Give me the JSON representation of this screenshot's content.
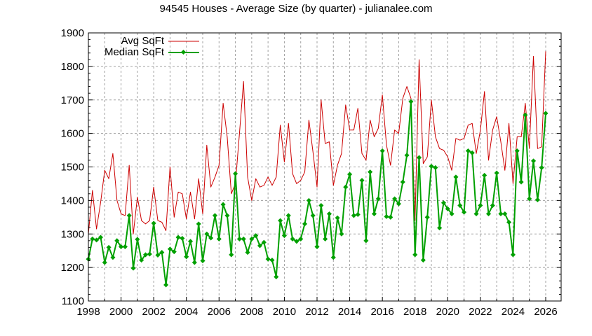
{
  "chart_data": {
    "type": "line",
    "title": "94545 Houses - Average Size (by quarter) - julianalee.com",
    "xlabel": "",
    "ylabel": "",
    "xlim": [
      1998,
      2027
    ],
    "ylim": [
      1100,
      1900
    ],
    "x_ticks": [
      1998,
      2000,
      2002,
      2004,
      2006,
      2008,
      2010,
      2012,
      2014,
      2016,
      2018,
      2020,
      2022,
      2024,
      2026
    ],
    "y_ticks": [
      1100,
      1200,
      1300,
      1400,
      1500,
      1600,
      1700,
      1800,
      1900
    ],
    "grid": true,
    "legend_position": "top-left",
    "x_start": 1998.0,
    "x_step": 0.25,
    "series": [
      {
        "name": "Avg SqFt",
        "color": "#cc0000",
        "marker": "none",
        "values": [
          1300,
          1430,
          1315,
          1395,
          1490,
          1465,
          1540,
          1400,
          1360,
          1355,
          1505,
          1300,
          1410,
          1340,
          1330,
          1340,
          1440,
          1340,
          1335,
          1310,
          1500,
          1350,
          1425,
          1420,
          1345,
          1425,
          1345,
          1465,
          1360,
          1565,
          1440,
          1470,
          1505,
          1690,
          1590,
          1420,
          1450,
          1600,
          1755,
          1470,
          1400,
          1465,
          1440,
          1445,
          1470,
          1445,
          1470,
          1625,
          1515,
          1630,
          1480,
          1450,
          1460,
          1485,
          1640,
          1545,
          1440,
          1700,
          1570,
          1575,
          1445,
          1505,
          1540,
          1685,
          1610,
          1610,
          1675,
          1540,
          1520,
          1640,
          1590,
          1615,
          1715,
          1565,
          1505,
          1610,
          1600,
          1705,
          1740,
          1705,
          1340,
          1820,
          1510,
          1530,
          1700,
          1590,
          1555,
          1550,
          1530,
          1490,
          1585,
          1580,
          1585,
          1625,
          1630,
          1540,
          1610,
          1725,
          1520,
          1610,
          1650,
          1575,
          1490,
          1630,
          1450,
          1590,
          1590,
          1690,
          1555,
          1830,
          1555,
          1560,
          1845
        ]
      },
      {
        "name": "Median SqFt",
        "color": "#00a000",
        "marker": "diamond",
        "values": [
          1225,
          1285,
          1282,
          1290,
          1215,
          1260,
          1230,
          1280,
          1262,
          1262,
          1355,
          1198,
          1284,
          1222,
          1238,
          1240,
          1332,
          1237,
          1245,
          1148,
          1255,
          1247,
          1290,
          1287,
          1232,
          1278,
          1215,
          1330,
          1220,
          1300,
          1288,
          1355,
          1285,
          1388,
          1355,
          1238,
          1480,
          1285,
          1285,
          1245,
          1285,
          1295,
          1265,
          1275,
          1225,
          1222,
          1172,
          1340,
          1295,
          1355,
          1285,
          1278,
          1285,
          1330,
          1400,
          1355,
          1262,
          1385,
          1285,
          1360,
          1230,
          1348,
          1300,
          1440,
          1478,
          1355,
          1358,
          1460,
          1280,
          1485,
          1360,
          1405,
          1548,
          1352,
          1350,
          1405,
          1390,
          1455,
          1535,
          1695,
          1238,
          1528,
          1222,
          1350,
          1502,
          1498,
          1318,
          1393,
          1375,
          1360,
          1470,
          1385,
          1365,
          1548,
          1542,
          1360,
          1385,
          1475,
          1360,
          1385,
          1482,
          1360,
          1360,
          1335,
          1238,
          1548,
          1455,
          1655,
          1405,
          1518,
          1402,
          1498,
          1660
        ]
      }
    ]
  },
  "legend": {
    "items": [
      {
        "label": "Avg SqFt"
      },
      {
        "label": "Median SqFt"
      }
    ]
  }
}
